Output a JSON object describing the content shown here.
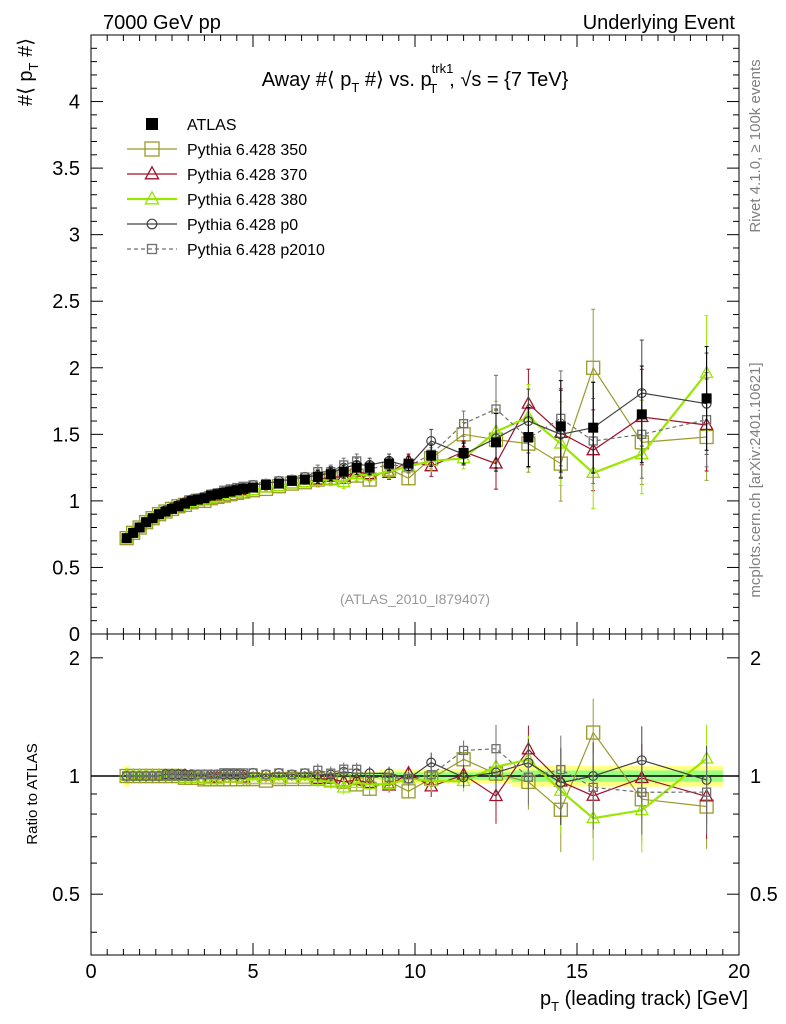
{
  "header": {
    "left": "7000 GeV pp",
    "right": "Underlying Event"
  },
  "side_text": {
    "rivet": "Rivet 4.1.0, ≥ 100k events",
    "mcplots": "mcplots.cern.ch [arXiv:2401.10621]"
  },
  "chart_data": {
    "type": "scatter",
    "title": "Away #⟨ p_T #⟩ vs. p_T^trk1, √s = {7 TeV}",
    "title_parts": {
      "prefix": "Away #⟨ p",
      "sub1": "T",
      "mid": " #⟩ vs. p",
      "sup2": "trk1",
      "sub2": "T",
      "suffix": ", √s = {7 TeV}"
    },
    "analysis_label": "(ATLAS_2010_I879407)",
    "ylabel_main": {
      "pre": "#⟨ p",
      "sub": "T",
      "post": " #⟩"
    },
    "ylabel_ratio": "Ratio to ATLAS",
    "xlabel": {
      "pre": "p",
      "sub": "T",
      "post": " (leading track) [GeV]"
    },
    "xlim": [
      0,
      20
    ],
    "ylim_main": [
      0,
      4.5
    ],
    "ylim_ratio": [
      0.35,
      2.3
    ],
    "x_ticks": [
      "0",
      "5",
      "10",
      "15",
      "20"
    ],
    "y_ticks_main": [
      "0",
      "0.5",
      "1",
      "1.5",
      "2",
      "2.5",
      "3",
      "3.5",
      "4"
    ],
    "y_ticks_ratio": [
      "0.5",
      "1",
      "2"
    ],
    "x": [
      1.1,
      1.3,
      1.5,
      1.7,
      1.9,
      2.1,
      2.3,
      2.5,
      2.7,
      2.9,
      3.1,
      3.3,
      3.5,
      3.7,
      3.9,
      4.1,
      4.3,
      4.5,
      4.7,
      5.0,
      5.4,
      5.8,
      6.2,
      6.6,
      7.0,
      7.4,
      7.8,
      8.2,
      8.6,
      9.2,
      9.8,
      10.5,
      11.5,
      12.5,
      13.5,
      14.5,
      15.5,
      17.0,
      19.0
    ],
    "series": [
      {
        "name": "ATLAS",
        "color": "#000000",
        "marker": "filled-square",
        "line": "none",
        "values": [
          0.72,
          0.76,
          0.8,
          0.84,
          0.87,
          0.9,
          0.92,
          0.94,
          0.96,
          0.98,
          1.0,
          1.01,
          1.02,
          1.04,
          1.05,
          1.06,
          1.07,
          1.08,
          1.09,
          1.1,
          1.12,
          1.13,
          1.15,
          1.16,
          1.18,
          1.2,
          1.22,
          1.25,
          1.25,
          1.28,
          1.28,
          1.34,
          1.36,
          1.44,
          1.48,
          1.56,
          1.55,
          1.65,
          1.77
        ]
      },
      {
        "name": "Pythia 6.428 350",
        "color": "#9a9a2a",
        "marker": "open-square",
        "line": "solid",
        "values": [
          0.72,
          0.76,
          0.8,
          0.84,
          0.87,
          0.9,
          0.92,
          0.94,
          0.96,
          0.97,
          0.99,
          1.0,
          1.0,
          1.02,
          1.03,
          1.04,
          1.05,
          1.06,
          1.07,
          1.08,
          1.09,
          1.11,
          1.13,
          1.14,
          1.16,
          1.17,
          1.18,
          1.19,
          1.16,
          1.24,
          1.17,
          1.32,
          1.5,
          1.46,
          1.43,
          1.28,
          2.0,
          1.44,
          1.48
        ]
      },
      {
        "name": "Pythia 6.428 370",
        "color": "#a0102a",
        "marker": "open-triangle",
        "line": "solid",
        "values": [
          0.72,
          0.76,
          0.8,
          0.84,
          0.87,
          0.9,
          0.92,
          0.94,
          0.96,
          0.98,
          0.99,
          1.0,
          1.01,
          1.03,
          1.04,
          1.05,
          1.06,
          1.07,
          1.08,
          1.08,
          1.1,
          1.11,
          1.13,
          1.14,
          1.16,
          1.18,
          1.18,
          1.22,
          1.2,
          1.21,
          1.3,
          1.26,
          1.37,
          1.28,
          1.73,
          1.51,
          1.38,
          1.63,
          1.57
        ]
      },
      {
        "name": "Pythia 6.428 380",
        "color": "#99e600",
        "marker": "open-triangle",
        "line": "solid",
        "values": [
          0.72,
          0.76,
          0.8,
          0.84,
          0.87,
          0.9,
          0.92,
          0.94,
          0.96,
          0.97,
          0.99,
          1.0,
          1.01,
          1.02,
          1.03,
          1.05,
          1.06,
          1.07,
          1.07,
          1.08,
          1.1,
          1.11,
          1.13,
          1.14,
          1.15,
          1.16,
          1.14,
          1.2,
          1.19,
          1.22,
          1.26,
          1.3,
          1.32,
          1.52,
          1.63,
          1.43,
          1.21,
          1.35,
          1.96
        ]
      },
      {
        "name": "Pythia 6.428 p0",
        "color": "#404040",
        "marker": "open-circle",
        "line": "solid",
        "values": [
          0.72,
          0.76,
          0.8,
          0.84,
          0.87,
          0.9,
          0.93,
          0.95,
          0.97,
          0.99,
          1.01,
          1.02,
          1.03,
          1.05,
          1.06,
          1.07,
          1.08,
          1.09,
          1.1,
          1.12,
          1.13,
          1.15,
          1.16,
          1.18,
          1.19,
          1.21,
          1.25,
          1.27,
          1.27,
          1.3,
          1.26,
          1.45,
          1.35,
          1.47,
          1.6,
          1.5,
          1.55,
          1.81,
          1.73
        ]
      },
      {
        "name": "Pythia 6.428 p2010",
        "color": "#707070",
        "marker": "open-square-small",
        "line": "dashed",
        "values": [
          0.72,
          0.76,
          0.8,
          0.84,
          0.87,
          0.9,
          0.92,
          0.94,
          0.96,
          0.98,
          1.0,
          1.02,
          1.03,
          1.05,
          1.06,
          1.08,
          1.09,
          1.1,
          1.11,
          1.12,
          1.13,
          1.15,
          1.16,
          1.18,
          1.22,
          1.22,
          1.27,
          1.3,
          1.24,
          1.27,
          1.26,
          1.35,
          1.58,
          1.69,
          1.47,
          1.62,
          1.45,
          1.5,
          1.61
        ]
      }
    ]
  }
}
